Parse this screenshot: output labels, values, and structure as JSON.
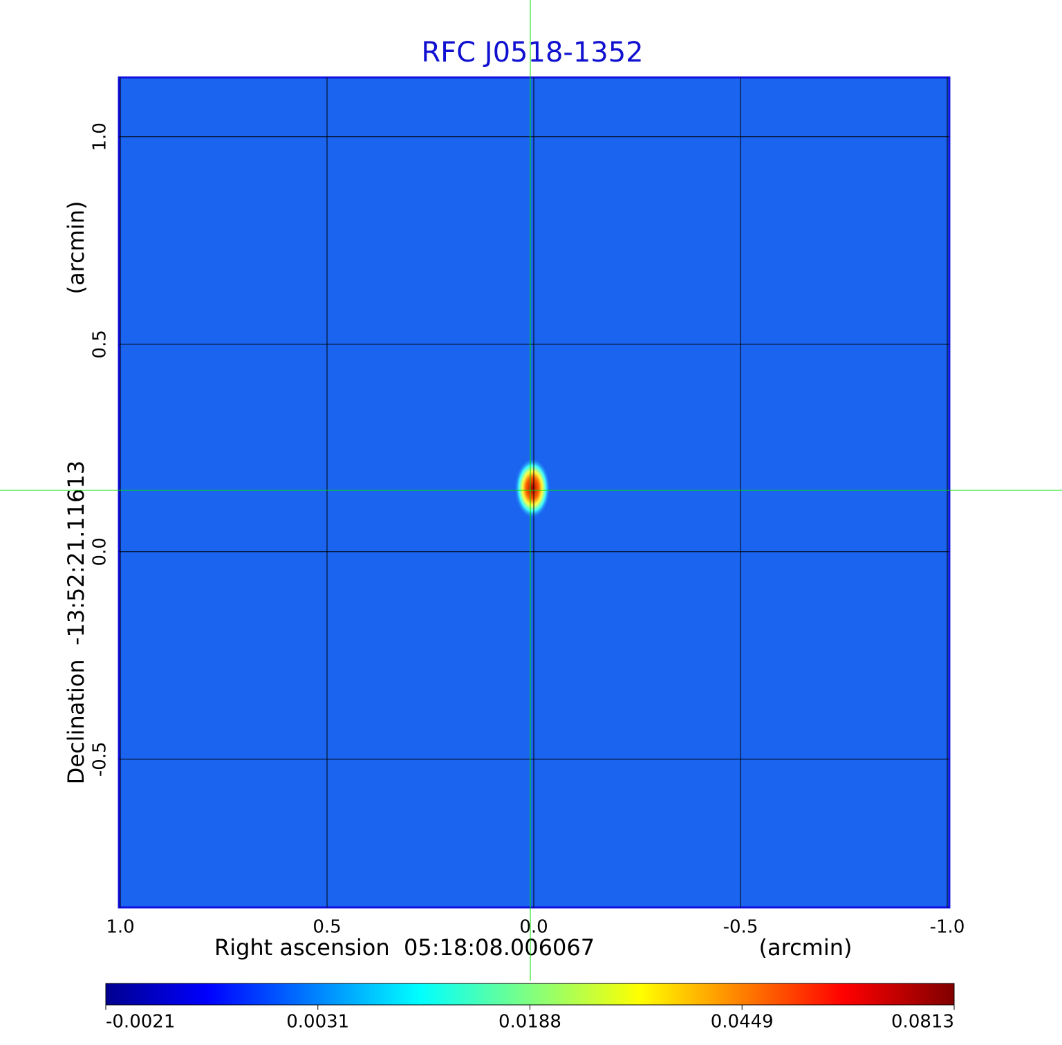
{
  "chart_data": {
    "type": "image",
    "title": "RFC J0518-1352",
    "xlabel": "Right ascension  05:18:08.006067",
    "xunit": "(arcmin)",
    "ylabel": "Declination  -13:52:21.11613",
    "yunit": "(arcmin)",
    "xlim": [
      1.0,
      -1.0
    ],
    "ylim": [
      -0.857,
      1.143
    ],
    "xticks": [
      {
        "value": 1.0,
        "label": "1.0"
      },
      0.5,
      {
        "value": 0.0,
        "label": "0.0"
      },
      -0.5,
      {
        "value": -1.0,
        "label": "-1.0"
      }
    ],
    "yticks": [
      {
        "value": 1.0,
        "label": "1.0"
      },
      0.5,
      {
        "value": 0.0,
        "label": "0.0"
      },
      -0.5
    ],
    "colorbar_ticks": [
      -0.0021,
      0.0031,
      0.0188,
      0.0449,
      0.0813
    ],
    "grid": true
  }
}
